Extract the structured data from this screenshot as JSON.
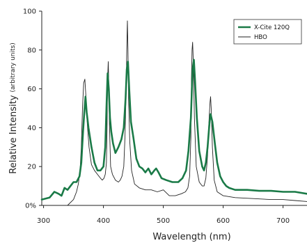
{
  "chart_data": {
    "type": "line",
    "title": "",
    "xlabel": "Wavelength (nm)",
    "ylabel": "Relative Intensity",
    "ylabel_suffix": "(arbitrary units)",
    "xlim": [
      297,
      740
    ],
    "ylim": [
      0,
      100
    ],
    "x_ticks": [
      300,
      400,
      500,
      600,
      700
    ],
    "x_tick_labels": [
      "300",
      "400",
      "500",
      "600",
      "700"
    ],
    "y_ticks": [
      0,
      20,
      40,
      60,
      80,
      100
    ],
    "y_tick_labels": [
      "0%",
      "20",
      "40",
      "60",
      "80",
      "100"
    ],
    "grid": false,
    "legend_position": "top-right",
    "colors": {
      "xcite": "#1a7a47",
      "hbo": "#222222"
    },
    "series": [
      {
        "name": "X-Cite 120Q",
        "color": "#1a7a47",
        "x": [
          297,
          310,
          318,
          325,
          330,
          335,
          340,
          345,
          350,
          355,
          360,
          363,
          366,
          368,
          370,
          372,
          375,
          380,
          385,
          390,
          395,
          400,
          403,
          405,
          407,
          409,
          411,
          413,
          416,
          420,
          425,
          430,
          434,
          437,
          439,
          441,
          443,
          446,
          450,
          455,
          460,
          465,
          470,
          475,
          480,
          485,
          488,
          492,
          497,
          505,
          515,
          525,
          532,
          538,
          542,
          546,
          549,
          551,
          553,
          556,
          560,
          565,
          568,
          571,
          574,
          577,
          579,
          582,
          586,
          590,
          595,
          600,
          605,
          610,
          620,
          640,
          660,
          680,
          700,
          720,
          740
        ],
        "y": [
          3,
          4,
          7,
          6,
          5,
          9,
          8,
          10,
          12,
          12,
          15,
          22,
          38,
          48,
          56,
          48,
          40,
          30,
          22,
          18,
          18,
          20,
          30,
          50,
          68,
          60,
          45,
          38,
          32,
          27,
          30,
          34,
          40,
          55,
          70,
          74,
          60,
          43,
          35,
          24,
          20,
          19,
          17,
          19,
          16,
          18,
          19,
          17,
          14,
          13,
          12,
          12,
          14,
          18,
          28,
          45,
          70,
          75,
          64,
          45,
          28,
          20,
          18,
          22,
          30,
          42,
          47,
          43,
          32,
          22,
          15,
          12,
          10,
          9,
          8,
          8,
          7.5,
          7.5,
          7,
          7,
          6
        ]
      },
      {
        "name": "HBO",
        "color": "#222222",
        "x": [
          297,
          340,
          350,
          355,
          358,
          361,
          363,
          365,
          367,
          369,
          371,
          373,
          376,
          380,
          385,
          390,
          395,
          398,
          401,
          403,
          405,
          406,
          407,
          408,
          409,
          410,
          412,
          415,
          420,
          425,
          428,
          431,
          434,
          436,
          438,
          439,
          440,
          441,
          442,
          444,
          447,
          452,
          460,
          470,
          480,
          490,
          500,
          510,
          520,
          530,
          537,
          541,
          544,
          546,
          547,
          548,
          549,
          550,
          552,
          555,
          560,
          565,
          568,
          571,
          574,
          576,
          578,
          579,
          580,
          582,
          585,
          590,
          600,
          620,
          650,
          680,
          700,
          720,
          740
        ],
        "y": [
          0,
          0,
          3,
          7,
          11,
          18,
          30,
          50,
          63,
          65,
          55,
          42,
          30,
          21,
          18,
          16,
          14,
          13,
          14,
          16,
          22,
          38,
          65,
          74,
          62,
          42,
          20,
          16,
          13,
          12,
          13,
          15,
          20,
          35,
          60,
          80,
          95,
          80,
          55,
          33,
          18,
          11,
          9,
          8,
          8,
          7,
          8,
          5,
          5,
          6,
          7,
          9,
          15,
          35,
          65,
          80,
          84,
          75,
          45,
          20,
          12,
          10,
          10,
          14,
          26,
          42,
          53,
          56,
          50,
          30,
          13,
          7,
          5,
          4,
          3.5,
          3,
          3,
          2.5,
          2
        ]
      }
    ]
  }
}
